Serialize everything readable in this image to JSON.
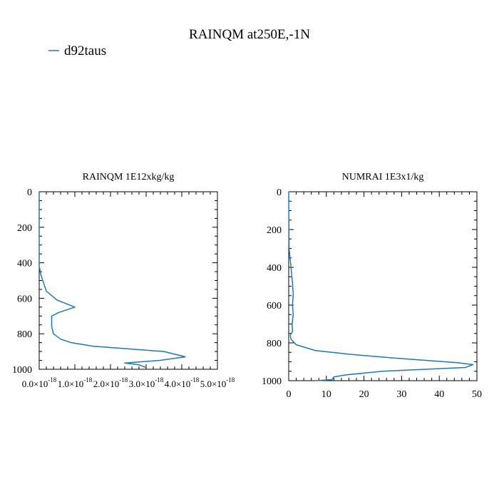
{
  "figure": {
    "title": "RAINQM at250E,-1N",
    "legend": {
      "label": "d92taus",
      "placement": "top-left"
    },
    "series_color": "#1f77b4"
  },
  "chart_data": [
    {
      "type": "line",
      "title": "RAINQM  1E12xkg/kg",
      "xlabel": "",
      "ylabel": "",
      "xlim": [
        0,
        5e-18
      ],
      "ylim": [
        1000,
        0
      ],
      "y_inverted": true,
      "x_ticks": [
        0,
        1e-18,
        2e-18,
        3e-18,
        4e-18,
        5e-18
      ],
      "x_tick_labels": [
        "0.0×10",
        "1.0×10",
        "2.0×10",
        "3.0×10",
        "4.0×10",
        "5.0×10"
      ],
      "x_tick_exponent": "-18",
      "y_ticks": [
        0,
        200,
        400,
        600,
        800,
        1000
      ],
      "y_tick_labels": [
        "0",
        "200",
        "400",
        "600",
        "800",
        "1000"
      ],
      "grid": false,
      "series": [
        {
          "name": "d92taus",
          "x": [
            0,
            0,
            5e-20,
            2e-19,
            5e-19,
            1e-18,
            5.5e-19,
            3.5e-19,
            3.5e-19,
            4e-19,
            6e-19,
            9e-19,
            1.5e-18,
            2.5e-18,
            3.5e-18,
            4.1e-18,
            3.4e-18,
            2.4e-18,
            2.8e-18,
            3e-18
          ],
          "y": [
            0,
            420,
            470,
            560,
            610,
            650,
            680,
            700,
            760,
            800,
            830,
            850,
            870,
            885,
            900,
            930,
            950,
            965,
            975,
            990
          ]
        }
      ]
    },
    {
      "type": "line",
      "title": "NUMRAI  1E3x1/kg",
      "xlabel": "",
      "ylabel": "",
      "xlim": [
        0,
        50
      ],
      "ylim": [
        1000,
        0
      ],
      "y_inverted": true,
      "x_ticks": [
        0,
        10,
        20,
        30,
        40,
        50
      ],
      "x_tick_labels": [
        "0",
        "10",
        "20",
        "30",
        "40",
        "50"
      ],
      "y_ticks": [
        0,
        200,
        400,
        600,
        800,
        1000
      ],
      "y_tick_labels": [
        "0",
        "200",
        "400",
        "600",
        "800",
        "1000"
      ],
      "grid": false,
      "series": [
        {
          "name": "d92taus",
          "x": [
            0,
            0.1,
            0.7,
            1.0,
            1.2,
            1.0,
            1.2,
            0.9,
            1.0,
            0.4,
            0.6,
            2.0,
            7.0,
            16.0,
            28.0,
            38.0,
            45.0,
            49.0,
            47.0,
            25.0,
            15.0,
            12.0,
            11.5,
            7.0
          ],
          "y": [
            0,
            300,
            420,
            480,
            540,
            600,
            650,
            700,
            740,
            760,
            780,
            810,
            840,
            860,
            880,
            895,
            905,
            915,
            930,
            950,
            970,
            980,
            995,
            1000
          ]
        }
      ]
    }
  ]
}
